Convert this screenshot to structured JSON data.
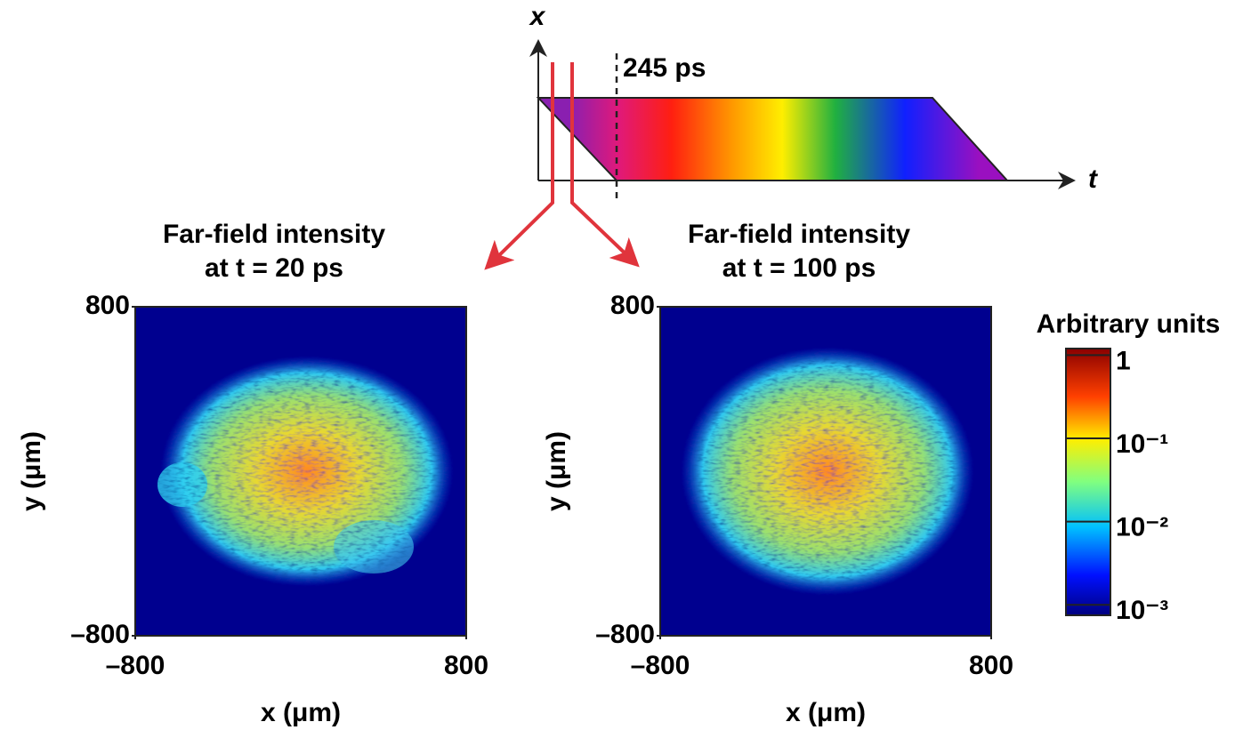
{
  "diagram": {
    "x_axis_label": "x",
    "t_axis_label": "t",
    "marker_label": "245 ps"
  },
  "chart_data": [
    {
      "type": "heatmap",
      "title": [
        "Far-field intensity",
        "at t = 20 ps"
      ],
      "xlabel": "x (μm)",
      "ylabel": "y (μm)",
      "xlim": [
        -800,
        800
      ],
      "ylim": [
        -800,
        800
      ],
      "xticks": [
        {
          "value": -800,
          "label": "–800"
        },
        800
      ],
      "yticks": [
        {
          "value": -800,
          "label": "–800"
        },
        800
      ]
    },
    {
      "type": "heatmap",
      "title": [
        "Far-field intensity",
        "at t = 100 ps"
      ],
      "xlabel": "x (μm)",
      "ylabel": "y (μm)",
      "xlim": [
        -800,
        800
      ],
      "ylim": [
        -800,
        800
      ],
      "xticks": [
        {
          "value": -800,
          "label": "–800"
        },
        800
      ],
      "yticks": [
        {
          "value": -800,
          "label": "–800"
        },
        800
      ],
      "colorbar": {
        "label": "Arbitrary units",
        "log_scale": true,
        "lim": [
          0.00075,
          1.2
        ],
        "ticks": [
          1,
          {
            "value": 0.1,
            "label": "10⁻¹"
          },
          {
            "value": 0.01,
            "label": "10⁻²"
          },
          {
            "value": 0.001,
            "label": "10⁻³"
          }
        ]
      }
    }
  ]
}
